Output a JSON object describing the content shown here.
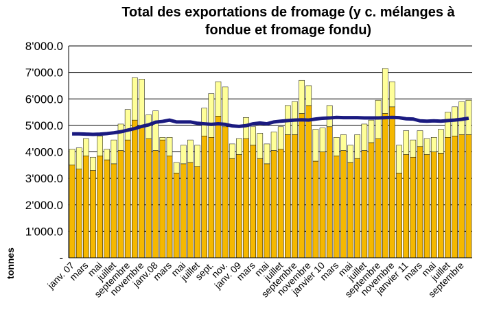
{
  "chart_data": {
    "type": "bar",
    "title": "Total des exportations de fromage (y c. mélanges à fondue et fromage fondu)",
    "title_lines": [
      "Total des exportations de fromage (y c. mélanges à",
      "fondue et fromage fondu)"
    ],
    "y_label": "tonnes",
    "categories": [
      "janv. 07",
      null,
      "mars",
      null,
      "mai",
      null,
      "juillet",
      null,
      "septembre",
      null,
      "novembre",
      null,
      "janv.08",
      null,
      "mars",
      null,
      "mai",
      null,
      "juillet",
      null,
      "sept.",
      null,
      "nov.",
      null,
      "janv. 09",
      null,
      "mars",
      null,
      "mai",
      null,
      "juillet",
      null,
      "septembre",
      null,
      "novembre",
      null,
      "janvier 10",
      null,
      "mars",
      null,
      "mai",
      null,
      "juillet",
      null,
      "septembre",
      null,
      "novembre",
      null,
      "janvier 11",
      null,
      "mars",
      null,
      "mai",
      null,
      "juillet",
      null,
      "septembre",
      null
    ],
    "series": [
      {
        "color": "#f5b800",
        "values": [
          3500,
          3350,
          3850,
          3300,
          3850,
          3700,
          3550,
          4050,
          4450,
          5200,
          5000,
          4500,
          4050,
          4450,
          3850,
          3200,
          3550,
          3600,
          3450,
          4600,
          4550,
          5350,
          4950,
          3750,
          3900,
          4500,
          4250,
          3750,
          3550,
          4050,
          4100,
          4650,
          4650,
          5450,
          5750,
          3650,
          4000,
          4950,
          3850,
          4050,
          3600,
          3750,
          4050,
          4350,
          4500,
          5450,
          5700,
          3200,
          3900,
          3800,
          4200,
          3900,
          4000,
          3950,
          4550,
          4600,
          4650,
          4650
        ]
      },
      {
        "color": "#ffff99",
        "values": [
          600,
          800,
          650,
          500,
          750,
          400,
          900,
          1000,
          1150,
          1600,
          1750,
          900,
          1500,
          100,
          700,
          400,
          700,
          850,
          800,
          1050,
          1650,
          1300,
          1500,
          550,
          600,
          800,
          700,
          950,
          750,
          700,
          850,
          1100,
          1250,
          1250,
          750,
          1200,
          900,
          800,
          700,
          600,
          650,
          900,
          1000,
          850,
          1450,
          1700,
          950,
          1050,
          900,
          650,
          600,
          600,
          550,
          900,
          950,
          1100,
          1250,
          1300
        ]
      },
      {
        "type": "line",
        "color": "#1a1a80",
        "values": [
          4680,
          4680,
          4670,
          4660,
          4670,
          4690,
          4720,
          4760,
          4820,
          4880,
          4960,
          5020,
          5120,
          5150,
          5200,
          5130,
          5130,
          5130,
          5080,
          5060,
          5040,
          5060,
          5040,
          4980,
          4960,
          4990,
          5060,
          5090,
          5060,
          5130,
          5160,
          5180,
          5200,
          5210,
          5200,
          5240,
          5270,
          5280,
          5300,
          5290,
          5290,
          5290,
          5280,
          5280,
          5280,
          5290,
          5300,
          5290,
          5250,
          5240,
          5170,
          5160,
          5170,
          5160,
          5180,
          5200,
          5230,
          5270
        ]
      }
    ],
    "ylim": [
      0,
      8000
    ],
    "yticks": [
      {
        "value": 0,
        "label": "-"
      },
      {
        "value": 1000,
        "label": "1'000.0"
      },
      {
        "value": 2000,
        "label": "2'000.0"
      },
      {
        "value": 3000,
        "label": "3'000.0"
      },
      {
        "value": 4000,
        "label": "4'000.0"
      },
      {
        "value": 5000,
        "label": "5'000.0"
      },
      {
        "value": 6000,
        "label": "6'000.0"
      },
      {
        "value": 7000,
        "label": "7'000.0"
      },
      {
        "value": 8000,
        "label": "8'000.0"
      }
    ],
    "grid": true
  }
}
